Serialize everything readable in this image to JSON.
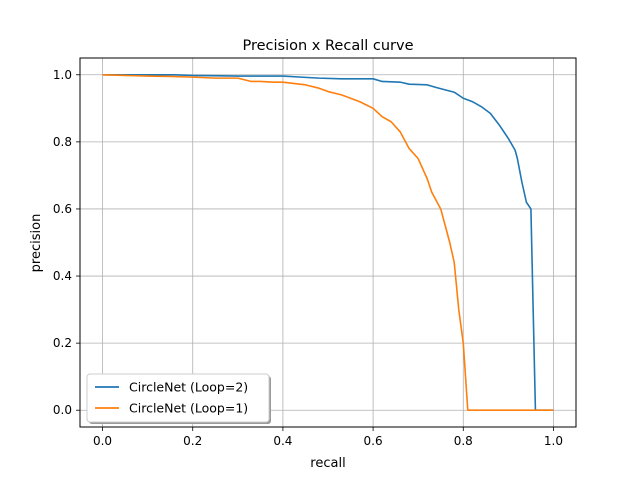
{
  "chart_data": {
    "type": "line",
    "title": "Precision x Recall curve",
    "xlabel": "recall",
    "ylabel": "precision",
    "xlim": [
      -0.05,
      1.05
    ],
    "ylim": [
      -0.05,
      1.05
    ],
    "xticks": [
      0.0,
      0.2,
      0.4,
      0.6,
      0.8,
      1.0
    ],
    "yticks": [
      0.0,
      0.2,
      0.4,
      0.6,
      0.8,
      1.0
    ],
    "xtick_labels": [
      "0.0",
      "0.2",
      "0.4",
      "0.6",
      "0.8",
      "1.0"
    ],
    "ytick_labels": [
      "0.0",
      "0.2",
      "0.4",
      "0.6",
      "0.8",
      "1.0"
    ],
    "grid": true,
    "legend_position": "lower-left",
    "series": [
      {
        "name": "CircleNet (Loop=2)",
        "color": "#1f77b4",
        "x": [
          0.0,
          0.05,
          0.1,
          0.16,
          0.2,
          0.3,
          0.4,
          0.44,
          0.48,
          0.53,
          0.6,
          0.62,
          0.66,
          0.68,
          0.72,
          0.74,
          0.76,
          0.78,
          0.8,
          0.82,
          0.84,
          0.86,
          0.88,
          0.9,
          0.915,
          0.92,
          0.93,
          0.94,
          0.95,
          0.955,
          0.96,
          0.98,
          1.0
        ],
        "y": [
          1.0,
          1.0,
          1.0,
          1.0,
          0.998,
          0.996,
          0.996,
          0.993,
          0.99,
          0.988,
          0.988,
          0.98,
          0.978,
          0.972,
          0.97,
          0.962,
          0.955,
          0.948,
          0.93,
          0.92,
          0.905,
          0.885,
          0.85,
          0.81,
          0.775,
          0.75,
          0.68,
          0.62,
          0.6,
          0.3,
          0.0,
          0.0,
          0.0
        ]
      },
      {
        "name": "CircleNet (Loop=1)",
        "color": "#ff7f0e",
        "x": [
          0.0,
          0.05,
          0.1,
          0.15,
          0.2,
          0.25,
          0.3,
          0.33,
          0.35,
          0.38,
          0.4,
          0.45,
          0.48,
          0.5,
          0.53,
          0.55,
          0.57,
          0.6,
          0.62,
          0.64,
          0.66,
          0.68,
          0.7,
          0.72,
          0.73,
          0.75,
          0.76,
          0.77,
          0.78,
          0.79,
          0.8,
          0.805,
          0.81,
          0.83,
          0.9,
          1.0
        ],
        "y": [
          1.0,
          0.998,
          0.996,
          0.995,
          0.993,
          0.99,
          0.99,
          0.98,
          0.98,
          0.978,
          0.978,
          0.97,
          0.96,
          0.95,
          0.94,
          0.93,
          0.92,
          0.9,
          0.875,
          0.86,
          0.83,
          0.78,
          0.75,
          0.69,
          0.65,
          0.6,
          0.55,
          0.5,
          0.44,
          0.3,
          0.2,
          0.1,
          0.0,
          0.0,
          0.0,
          0.0
        ]
      }
    ]
  }
}
